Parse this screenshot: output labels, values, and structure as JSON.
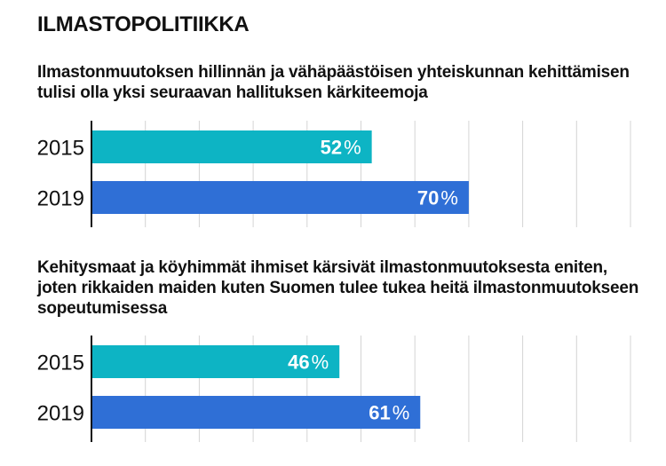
{
  "page": {
    "title": "ILMASTOPOLITIIKKA"
  },
  "colors": {
    "y2015": "#0db4c4",
    "y2019": "#2f6fd6",
    "grid": "#d4d4d4",
    "axis": "#111111"
  },
  "chart_data": [
    {
      "type": "bar",
      "orientation": "horizontal",
      "title": "Ilmastonmuutoksen hillinnän ja vähäpäästöisen yhteiskunnan kehittämisen tulisi olla yksi seuraavan hallituksen kärkiteemoja",
      "categories": [
        "2015",
        "2019"
      ],
      "values": [
        52,
        70
      ],
      "unit": "%",
      "xlim": [
        0,
        100
      ],
      "grid": true
    },
    {
      "type": "bar",
      "orientation": "horizontal",
      "title": "Kehitysmaat ja köyhimmät ihmiset kärsivät ilmastonmuutoksesta eniten, joten rikkaiden maiden kuten Suomen tulee tukea heitä ilmastonmuutokseen sopeutumisessa",
      "categories": [
        "2015",
        "2019"
      ],
      "values": [
        46,
        61
      ],
      "unit": "%",
      "xlim": [
        0,
        100
      ],
      "grid": true
    }
  ]
}
